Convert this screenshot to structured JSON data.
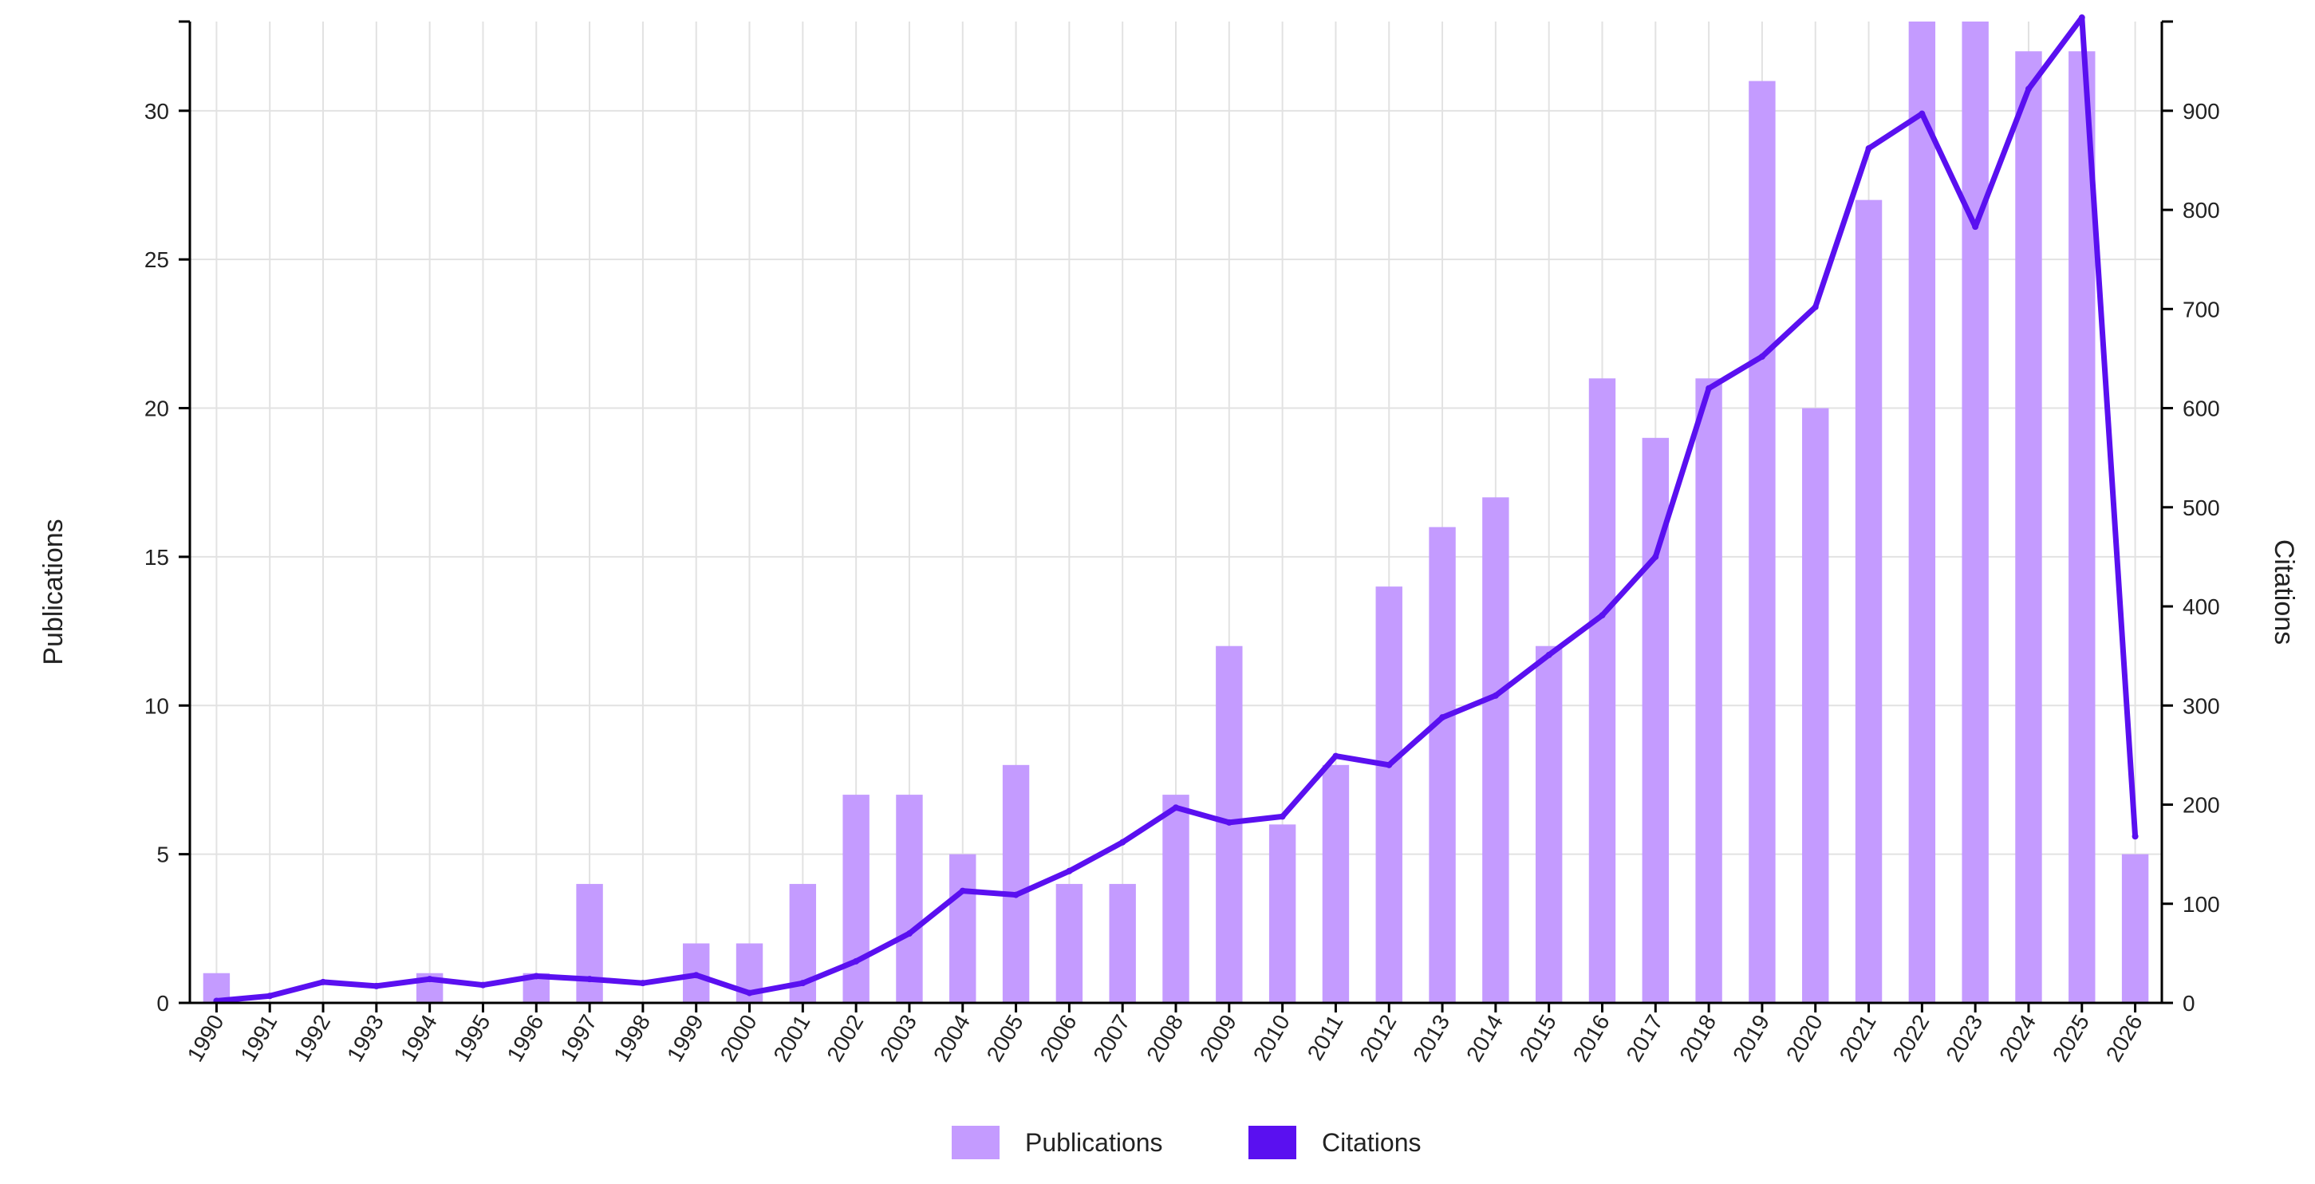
{
  "chart_data": {
    "type": "bar",
    "categories": [
      "1990",
      "1991",
      "1992",
      "1993",
      "1994",
      "1995",
      "1996",
      "1997",
      "1998",
      "1999",
      "2000",
      "2001",
      "2002",
      "2003",
      "2004",
      "2005",
      "2006",
      "2007",
      "2008",
      "2009",
      "2010",
      "2011",
      "2012",
      "2013",
      "2014",
      "2015",
      "2016",
      "2017",
      "2018",
      "2019",
      "2020",
      "2021",
      "2022",
      "2023",
      "2024",
      "2025",
      "2026"
    ],
    "series": [
      {
        "name": "Publications",
        "type": "bar",
        "axis": "left",
        "color": "#c49bff",
        "values": [
          1,
          0,
          0,
          0,
          1,
          0,
          1,
          4,
          0,
          2,
          2,
          4,
          7,
          7,
          5,
          8,
          4,
          4,
          7,
          12,
          6,
          8,
          14,
          16,
          17,
          12,
          21,
          19,
          21,
          31,
          20,
          27,
          33,
          33,
          32,
          32,
          5
        ]
      },
      {
        "name": "Citations",
        "type": "line",
        "axis": "right",
        "color": "#5a10f0",
        "values": [
          2,
          7,
          21,
          17,
          24,
          18,
          27,
          24,
          20,
          28,
          10,
          20,
          42,
          70,
          113,
          109,
          133,
          162,
          197,
          182,
          188,
          249,
          240,
          288,
          310,
          351,
          391,
          450,
          620,
          652,
          702,
          862,
          897,
          783,
          922,
          994,
          168
        ]
      }
    ],
    "xlabel": "",
    "ylabel": "Publications",
    "y2label": "Citations",
    "ylim": [
      0,
      33
    ],
    "y2lim": [
      0,
      990
    ],
    "yticks": [
      0,
      5,
      10,
      15,
      20,
      25,
      30
    ],
    "y2ticks": [
      0,
      100,
      200,
      300,
      400,
      500,
      600,
      700,
      800,
      900
    ],
    "grid": true,
    "legend_position": "bottom-center"
  }
}
